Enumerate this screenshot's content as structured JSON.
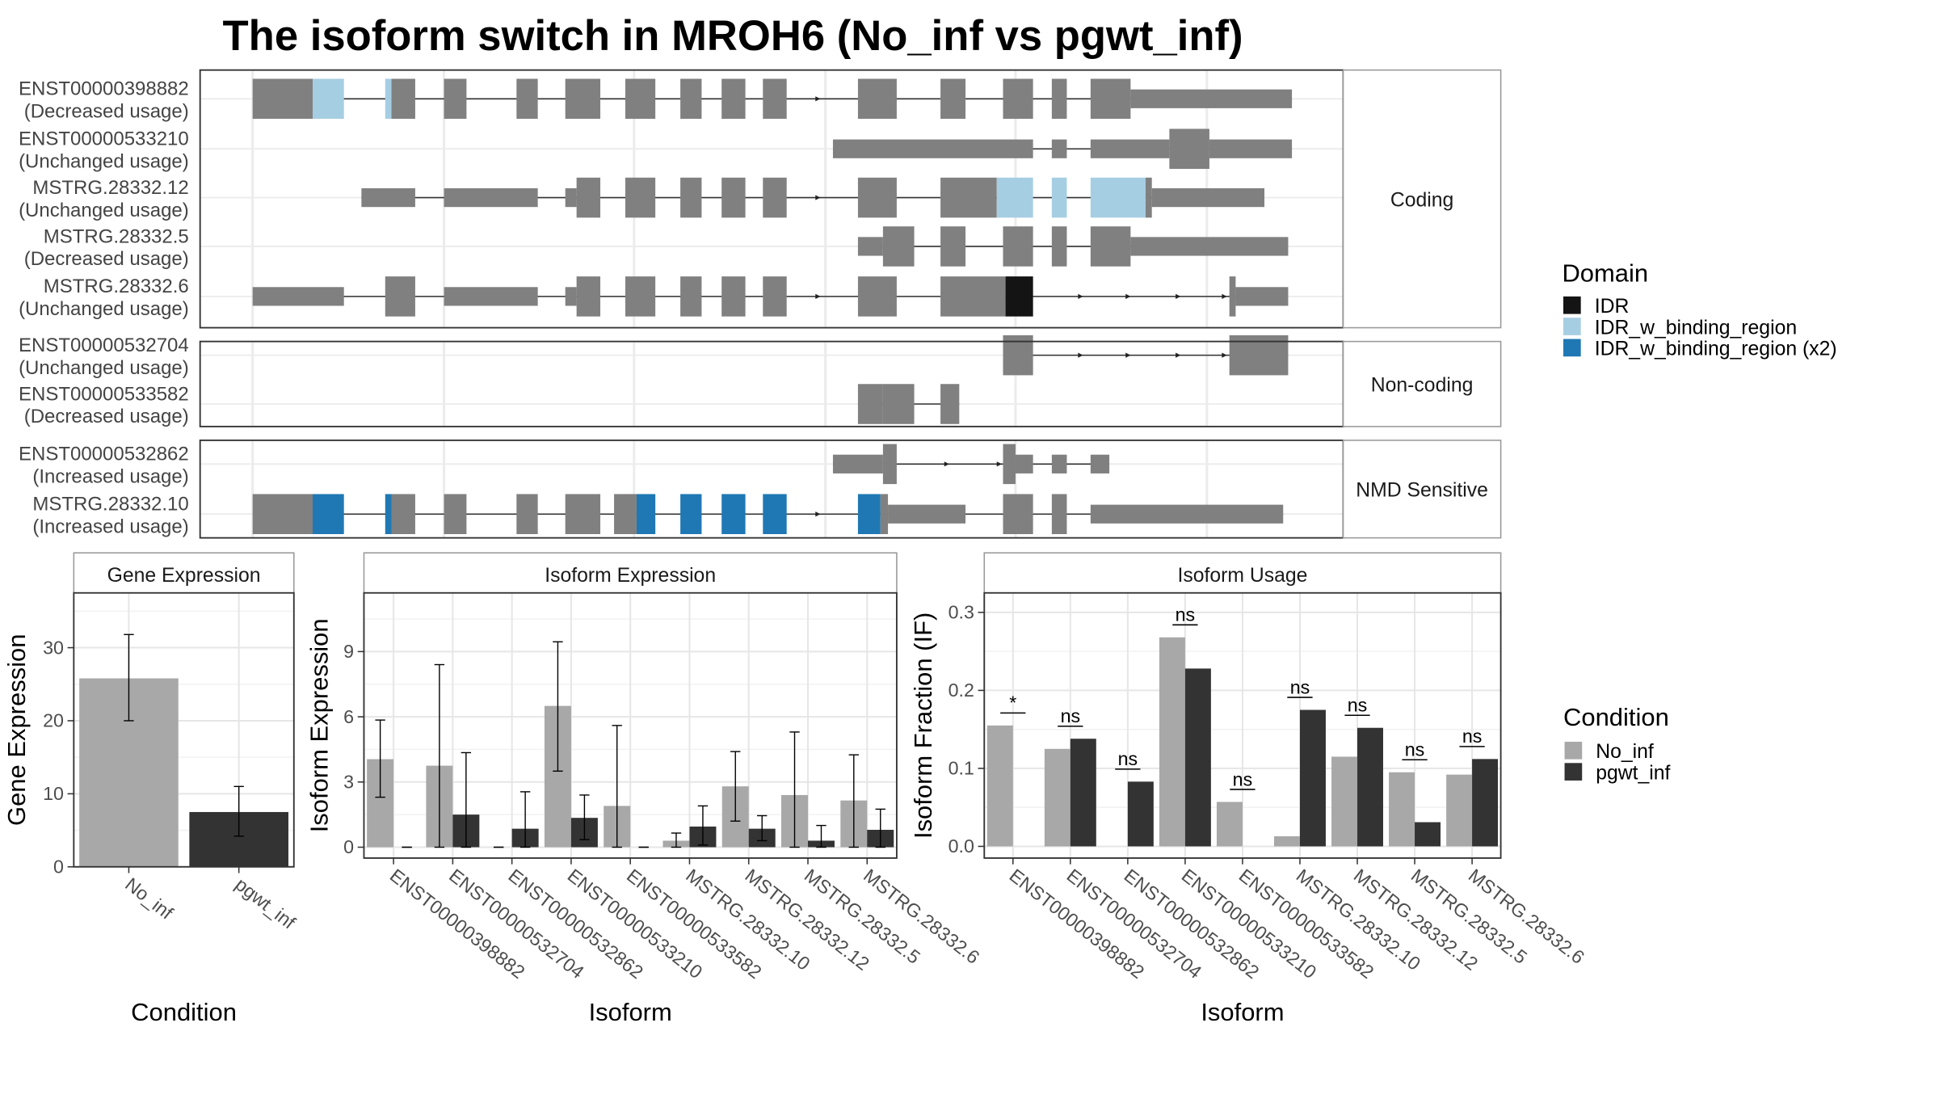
{
  "title": "The isoform switch in MROH6 (No_inf vs pgwt_inf)",
  "colors": {
    "exon": "#808080",
    "IDR": "#141414",
    "IDR_w_binding_region": "#a6cee3",
    "IDR_w_binding_region_x2": "#1f78b4",
    "No_inf": "#a8a8a8",
    "pgwt_inf": "#333333"
  },
  "transcripts": {
    "groups": [
      {
        "name": "Coding",
        "rows": [
          {
            "id": "ENST00000398882",
            "usage": "(Decreased usage)",
            "exons": [
              [
                202,
                250
              ],
              [
                250,
                275,
                "IDR_w_binding_region"
              ],
              [
                308,
                313,
                "IDR_w_binding_region"
              ],
              [
                313,
                332
              ],
              [
                355,
                373
              ],
              [
                413,
                430
              ],
              [
                452,
                480
              ],
              [
                500,
                524
              ],
              [
                544,
                561
              ],
              [
                577,
                596
              ],
              [
                610,
                629
              ],
              [
                686,
                717
              ],
              [
                752,
                772
              ],
              [
                802,
                826
              ],
              [
                841,
                853
              ],
              [
                872,
                904
              ],
              [
                904,
                1033
              ]
            ],
            "thin": [
              [
                202,
                246
              ],
              [
                904,
                1033
              ]
            ],
            "arrows": [
              655
            ]
          },
          {
            "id": "ENST00000533210",
            "usage": "(Unchanged usage)",
            "exons": [
              [
                666,
                826
              ],
              [
                841,
                853
              ],
              [
                872,
                935
              ],
              [
                935,
                967
              ],
              [
                967,
                1033
              ]
            ],
            "thin": [
              [
                666,
                826
              ],
              [
                841,
                853
              ],
              [
                872,
                935
              ],
              [
                967,
                1033
              ]
            ],
            "arrows": []
          },
          {
            "id": "MSTRG.28332.12",
            "usage": "(Unchanged usage)",
            "exons": [
              [
                289,
                332
              ],
              [
                355,
                430
              ],
              [
                452,
                461
              ],
              [
                461,
                480
              ],
              [
                500,
                524
              ],
              [
                544,
                561
              ],
              [
                577,
                596
              ],
              [
                610,
                629
              ],
              [
                686,
                717
              ],
              [
                752,
                797
              ],
              [
                797,
                826,
                "IDR_w_binding_region"
              ],
              [
                841,
                853,
                "IDR_w_binding_region"
              ],
              [
                872,
                916,
                "IDR_w_binding_region"
              ],
              [
                916,
                921
              ],
              [
                921,
                1011
              ]
            ],
            "thin": [
              [
                289,
                332
              ],
              [
                355,
                430
              ],
              [
                452,
                461
              ],
              [
                921,
                1011
              ]
            ],
            "arrows": [
              655
            ]
          },
          {
            "id": "MSTRG.28332.5",
            "usage": "(Decreased usage)",
            "exons": [
              [
                686,
                706
              ],
              [
                706,
                731
              ],
              [
                752,
                772
              ],
              [
                802,
                826
              ],
              [
                841,
                853
              ],
              [
                872,
                904
              ],
              [
                904,
                1030
              ]
            ],
            "thin": [
              [
                686,
                706
              ],
              [
                904,
                1030
              ]
            ],
            "arrows": []
          },
          {
            "id": "MSTRG.28332.6",
            "usage": "(Unchanged usage)",
            "exons": [
              [
                202,
                275
              ],
              [
                308,
                332
              ],
              [
                355,
                430
              ],
              [
                452,
                461
              ],
              [
                461,
                480
              ],
              [
                500,
                524
              ],
              [
                544,
                561
              ],
              [
                577,
                596
              ],
              [
                610,
                629
              ],
              [
                686,
                717
              ],
              [
                752,
                804
              ],
              [
                804,
                826,
                "IDR"
              ],
              [
                983,
                988
              ],
              [
                988,
                1030
              ]
            ],
            "thin": [
              [
                202,
                275
              ],
              [
                355,
                430
              ],
              [
                452,
                461
              ],
              [
                988,
                1030
              ]
            ],
            "arrows": [
              655,
              865,
              903,
              943,
              980
            ]
          }
        ]
      },
      {
        "name": "Non-coding",
        "rows": [
          {
            "id": "ENST00000532704",
            "usage": "(Unchanged usage)",
            "exons": [
              [
                802,
                826
              ],
              [
                983,
                1030
              ]
            ],
            "thin": [],
            "arrows": [
              865,
              903,
              943,
              980
            ]
          },
          {
            "id": "ENST00000533582",
            "usage": "(Decreased usage)",
            "exons": [
              [
                686,
                706
              ],
              [
                706,
                731
              ],
              [
                752,
                767
              ]
            ],
            "thin": [],
            "arrows": []
          }
        ]
      },
      {
        "name": "NMD Sensitive",
        "rows": [
          {
            "id": "ENST00000532862",
            "usage": "(Increased usage)",
            "exons": [
              [
                666,
                706
              ],
              [
                706,
                717
              ],
              [
                802,
                812
              ],
              [
                812,
                826
              ],
              [
                841,
                853
              ],
              [
                872,
                887
              ]
            ],
            "thin": [
              [
                666,
                706
              ],
              [
                812,
                826
              ],
              [
                841,
                853
              ],
              [
                872,
                887
              ]
            ],
            "arrows": [
              758,
              800
            ]
          },
          {
            "id": "MSTRG.28332.10",
            "usage": "(Increased usage)",
            "exons": [
              [
                202,
                250
              ],
              [
                250,
                275,
                "IDR_w_binding_region_x2"
              ],
              [
                308,
                313,
                "IDR_w_binding_region_x2"
              ],
              [
                313,
                332
              ],
              [
                355,
                373
              ],
              [
                413,
                430
              ],
              [
                452,
                480
              ],
              [
                491,
                509
              ],
              [
                509,
                524,
                "IDR_w_binding_region_x2"
              ],
              [
                544,
                561,
                "IDR_w_binding_region_x2"
              ],
              [
                577,
                596,
                "IDR_w_binding_region_x2"
              ],
              [
                610,
                629,
                "IDR_w_binding_region_x2"
              ],
              [
                686,
                704,
                "IDR_w_binding_region_x2"
              ],
              [
                704,
                710
              ],
              [
                710,
                772
              ],
              [
                802,
                826
              ],
              [
                841,
                853
              ],
              [
                872,
                1026
              ]
            ],
            "thin": [
              [
                202,
                246
              ],
              [
                710,
                772
              ],
              [
                872,
                1026
              ]
            ],
            "arrows": [
              655
            ]
          }
        ]
      }
    ]
  },
  "domain_legend": {
    "title": "Domain",
    "items": [
      {
        "label": "IDR",
        "color": "#141414"
      },
      {
        "label": "IDR_w_binding_region",
        "color": "#a6cee3"
      },
      {
        "label": "IDR_w_binding_region (x2)",
        "color": "#1f78b4"
      }
    ]
  },
  "condition_legend": {
    "title": "Condition",
    "items": [
      {
        "label": "No_inf",
        "color": "#a8a8a8"
      },
      {
        "label": "pgwt_inf",
        "color": "#333333"
      }
    ]
  },
  "chart_data": [
    {
      "type": "bar",
      "title": "Gene Expression",
      "xlabel": "Condition",
      "ylabel": "Gene Expression",
      "categories": [
        "No_inf",
        "pgwt_inf"
      ],
      "values": [
        25.8,
        7.5
      ],
      "error_low": [
        20.0,
        4.2
      ],
      "error_high": [
        31.8,
        11.0
      ],
      "ylim": [
        0,
        37.5
      ],
      "yticks": [
        0,
        10,
        20,
        30
      ]
    },
    {
      "type": "bar",
      "title": "Isoform Expression",
      "xlabel": "Isoform",
      "ylabel": "Isoform Expression",
      "categories": [
        "ENST00000398882",
        "ENST00000532704",
        "ENST00000532862",
        "ENST00000533210",
        "ENST00000533582",
        "MSTRG.28332.10",
        "MSTRG.28332.12",
        "MSTRG.28332.5",
        "MSTRG.28332.6"
      ],
      "series": [
        {
          "name": "No_inf",
          "values": [
            4.05,
            3.75,
            0.0,
            6.5,
            1.9,
            0.3,
            2.8,
            2.4,
            2.15
          ],
          "error_low": [
            2.3,
            0.0,
            0.0,
            3.5,
            0.0,
            0.0,
            1.2,
            0.0,
            0.0
          ],
          "error_high": [
            5.85,
            8.4,
            0.0,
            9.45,
            5.6,
            0.65,
            4.4,
            5.3,
            4.25
          ]
        },
        {
          "name": "pgwt_inf",
          "values": [
            0.0,
            1.5,
            0.85,
            1.35,
            0.0,
            0.95,
            0.85,
            0.3,
            0.8
          ],
          "error_low": [
            0.0,
            0.0,
            0.0,
            0.35,
            0.0,
            0.1,
            0.3,
            0.0,
            0.0
          ],
          "error_high": [
            0.0,
            4.35,
            2.55,
            2.4,
            0.0,
            1.9,
            1.45,
            1.0,
            1.75
          ]
        }
      ],
      "ylim": [
        -0.5,
        11.7
      ],
      "yticks": [
        0,
        3,
        6,
        9
      ]
    },
    {
      "type": "bar",
      "title": "Isoform Usage",
      "xlabel": "Isoform",
      "ylabel": "Isoform Fraction (IF)",
      "categories": [
        "ENST00000398882",
        "ENST00000532704",
        "ENST00000532862",
        "ENST00000533210",
        "ENST00000533582",
        "MSTRG.28332.10",
        "MSTRG.28332.12",
        "MSTRG.28332.5",
        "MSTRG.28332.6"
      ],
      "series": [
        {
          "name": "No_inf",
          "values": [
            0.155,
            0.125,
            0.0,
            0.268,
            0.057,
            0.013,
            0.115,
            0.095,
            0.092
          ]
        },
        {
          "name": "pgwt_inf",
          "values": [
            0.0,
            0.138,
            0.083,
            0.228,
            0.0,
            0.175,
            0.152,
            0.031,
            0.112
          ]
        }
      ],
      "significance": [
        "*",
        "ns",
        "ns",
        "ns",
        "ns",
        "ns",
        "ns",
        "ns",
        "ns"
      ],
      "ylim": [
        -0.015,
        0.325
      ],
      "yticks": [
        0.0,
        0.1,
        0.2,
        0.3
      ]
    }
  ]
}
